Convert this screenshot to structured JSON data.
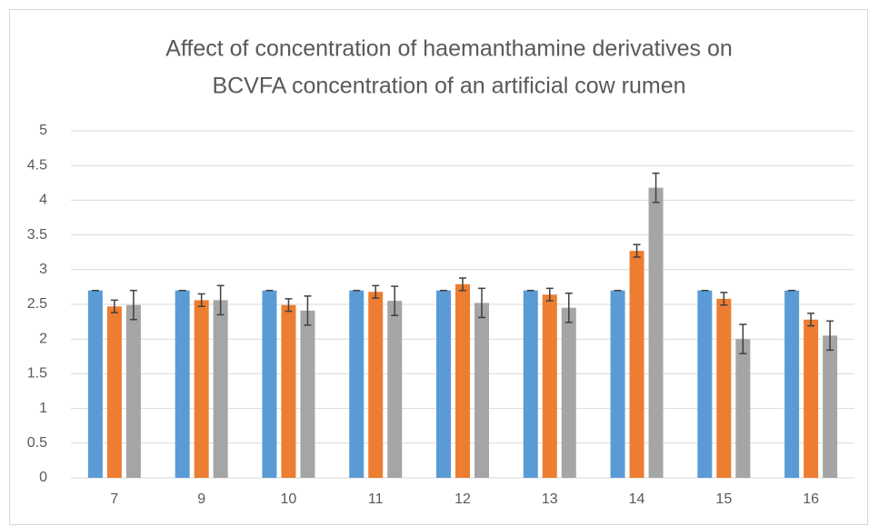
{
  "chart_data": {
    "type": "bar",
    "title": [
      "Affect of concentration of haemanthamine derivatives on",
      "BCVFA concentration of an artificial cow rumen"
    ],
    "categories": [
      "7",
      "9",
      "10",
      "11",
      "12",
      "13",
      "14",
      "15",
      "16"
    ],
    "series": [
      {
        "color": "#5b9bd5",
        "values": [
          2.7,
          2.7,
          2.7,
          2.7,
          2.7,
          2.7,
          2.7,
          2.7,
          2.7
        ],
        "errors": [
          0,
          0,
          0,
          0,
          0,
          0,
          0,
          0,
          0
        ]
      },
      {
        "color": "#ed7d31",
        "values": [
          2.47,
          2.56,
          2.49,
          2.68,
          2.79,
          2.64,
          3.27,
          2.58,
          2.28
        ],
        "errors": [
          0.09,
          0.09,
          0.09,
          0.09,
          0.09,
          0.09,
          0.09,
          0.09,
          0.09
        ]
      },
      {
        "color": "#a5a5a5",
        "values": [
          2.49,
          2.56,
          2.41,
          2.55,
          2.52,
          2.45,
          4.18,
          2.0,
          2.05
        ],
        "errors": [
          0.21,
          0.21,
          0.21,
          0.21,
          0.21,
          0.21,
          0.21,
          0.21,
          0.21
        ]
      }
    ],
    "ylim": [
      0,
      5
    ],
    "yticks": [
      0,
      0.5,
      1,
      1.5,
      2,
      2.5,
      3,
      3.5,
      4,
      4.5,
      5
    ],
    "grid": true
  }
}
